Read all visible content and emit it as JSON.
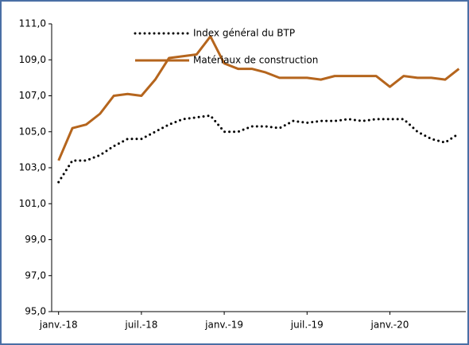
{
  "chart_data": {
    "type": "line",
    "categories": [
      "janv.-18",
      null,
      null,
      null,
      null,
      null,
      "juil.-18",
      null,
      null,
      null,
      null,
      null,
      "janv.-19",
      null,
      null,
      null,
      null,
      null,
      "juil.-19",
      null,
      null,
      null,
      null,
      null,
      "janv.-20",
      null,
      null,
      null,
      null,
      null
    ],
    "series": [
      {
        "name": "Index général du BTP",
        "color": "#000000",
        "dash": "dotted",
        "values": [
          102.2,
          103.4,
          103.4,
          103.7,
          104.2,
          104.6,
          104.6,
          105.0,
          105.4,
          105.7,
          105.8,
          105.9,
          105.0,
          105.0,
          105.3,
          105.3,
          105.2,
          105.6,
          105.5,
          105.6,
          105.6,
          105.7,
          105.6,
          105.7,
          105.7,
          105.7,
          105.0,
          104.6,
          104.4,
          104.9
        ]
      },
      {
        "name": "Matériaux de construction",
        "color": "#b5651d",
        "dash": "solid",
        "values": [
          103.4,
          105.2,
          105.4,
          106.0,
          107.0,
          107.1,
          107.0,
          107.9,
          109.1,
          109.2,
          109.3,
          110.3,
          108.8,
          108.5,
          108.5,
          108.3,
          108.0,
          108.0,
          108.0,
          107.9,
          108.1,
          108.1,
          108.1,
          108.1,
          107.5,
          108.1,
          108.0,
          108.0,
          107.9,
          108.5
        ]
      }
    ],
    "ylim": [
      95,
      111
    ],
    "yticks": [
      {
        "value": 95,
        "label": "95,0"
      },
      {
        "value": 97,
        "label": "97,0"
      },
      {
        "value": 99,
        "label": "99,0"
      },
      {
        "value": 101,
        "label": "101,0"
      },
      {
        "value": 103,
        "label": "103,0"
      },
      {
        "value": 105,
        "label": "105,0"
      },
      {
        "value": 107,
        "label": "107,0"
      },
      {
        "value": 109,
        "label": "109,0"
      },
      {
        "value": 111,
        "label": "111,0"
      }
    ],
    "grid": false,
    "legend": "top"
  }
}
